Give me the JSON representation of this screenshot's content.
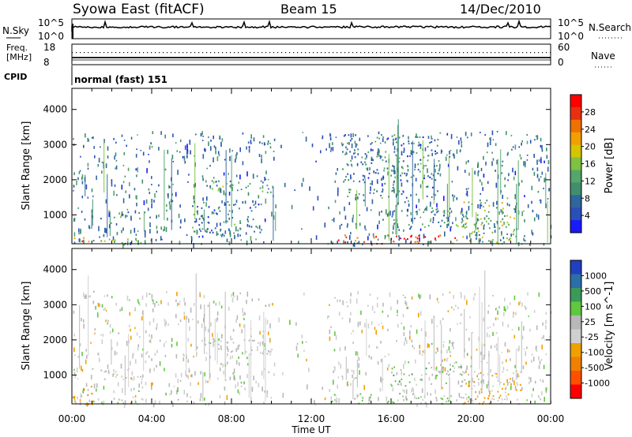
{
  "header": {
    "station": "Syowa East (fitACF)",
    "beam": "Beam 15",
    "date": "14/Dec/2010"
  },
  "nsky_panel": {
    "left_label": "N.Sky",
    "right_label": "N.Search",
    "left_ticks": [
      "10^5",
      "10^0"
    ],
    "right_ticks": [
      "10^5",
      "10^0"
    ]
  },
  "freq_panel": {
    "left_label_1": "Freq.",
    "left_label_2": "[MHz]",
    "right_label": "Nave",
    "left_ticks": [
      "18",
      "8"
    ],
    "right_ticks": [
      "60",
      "0"
    ],
    "cpid_label": "CPID",
    "cpid_text": "normal (fast) 151"
  },
  "colors": {
    "power_scale": [
      "#1a1aff",
      "#2a4fb8",
      "#2f66a0",
      "#3f8f6f",
      "#56a56a",
      "#7dc241",
      "#d6c400",
      "#f0a000",
      "#f07000",
      "#e83010",
      "#ff0000"
    ],
    "velocity_scale": [
      "#ff0000",
      "#ff5000",
      "#f08000",
      "#f0a000",
      "#cfcfcf",
      "#b8b8b8",
      "#60c840",
      "#3a9a5a",
      "#2a6fa8",
      "#2040c0"
    ],
    "axis": "#000000",
    "background": "#ffffff"
  },
  "chart_data": [
    {
      "type": "heatmap",
      "title": "",
      "xlabel": "Time UT",
      "ylabel": "Slant Range [km]",
      "xlim": [
        "00:00",
        "24:00"
      ],
      "ylim": [
        180,
        4600
      ],
      "x_ticks": [
        "00:00",
        "04:00",
        "08:00",
        "12:00",
        "16:00",
        "20:00",
        "00:00"
      ],
      "y_ticks": [
        1000,
        2000,
        3000,
        4000
      ],
      "colorbar": {
        "label": "Power [dB]",
        "ticks": [
          "4",
          "8",
          "12",
          "16",
          "20",
          "24",
          "28"
        ],
        "range": [
          0,
          30
        ]
      },
      "regions": [
        {
          "t_start": 0.0,
          "t_end": 0.9,
          "r_start": 180,
          "r_end": 400,
          "value": 24
        },
        {
          "t_start": 0.9,
          "t_end": 3.9,
          "r_start": 900,
          "r_end": 1150,
          "value": 10
        },
        {
          "t_start": 0.5,
          "t_end": 3.5,
          "r_start": 180,
          "r_end": 350,
          "value": 14
        },
        {
          "t_start": 6.7,
          "t_end": 10.0,
          "r_start": 1650,
          "r_end": 2000,
          "value": 11
        },
        {
          "t_start": 6.0,
          "t_end": 9.5,
          "r_start": 400,
          "r_end": 1400,
          "value": 8
        },
        {
          "t_start": 13.2,
          "t_end": 19.5,
          "r_start": 200,
          "r_end": 450,
          "value": 26
        },
        {
          "t_start": 16.0,
          "t_end": 20.0,
          "r_start": 600,
          "r_end": 1200,
          "value": 10
        },
        {
          "t_start": 19.5,
          "t_end": 22.3,
          "r_start": 200,
          "r_end": 1500,
          "value": 14
        },
        {
          "t_start": 13.5,
          "t_end": 18.5,
          "r_start": 1500,
          "r_end": 3300,
          "value": 8
        }
      ]
    },
    {
      "type": "heatmap",
      "title": "",
      "xlabel": "Time UT",
      "ylabel": "Slant Range [km]",
      "xlim": [
        "00:00",
        "24:00"
      ],
      "ylim": [
        180,
        4600
      ],
      "x_ticks": [
        "00:00",
        "04:00",
        "08:00",
        "12:00",
        "16:00",
        "20:00",
        "00:00"
      ],
      "y_ticks": [
        1000,
        2000,
        3000,
        4000
      ],
      "colorbar": {
        "label": "Velocity [m s^-1]",
        "ticks": [
          "1000",
          "500",
          "100",
          "25",
          "-25",
          "-100",
          "-500",
          "-1000"
        ],
        "range": [
          -1200,
          1200
        ]
      },
      "regions": [
        {
          "t_start": 0.0,
          "t_end": 1.0,
          "r_start": 180,
          "r_end": 700,
          "value": -450
        },
        {
          "t_start": 1.0,
          "t_end": 3.5,
          "r_start": 900,
          "r_end": 1200,
          "value": 0
        },
        {
          "t_start": 0.5,
          "t_end": 3.8,
          "r_start": 180,
          "r_end": 350,
          "value": 150
        },
        {
          "t_start": 6.8,
          "t_end": 10.0,
          "r_start": 1600,
          "r_end": 2100,
          "value": 0
        },
        {
          "t_start": 13.0,
          "t_end": 20.0,
          "r_start": 200,
          "r_end": 500,
          "value": 200
        },
        {
          "t_start": 16.0,
          "t_end": 20.0,
          "r_start": 700,
          "r_end": 1400,
          "value": 300
        },
        {
          "t_start": 19.5,
          "t_end": 22.5,
          "r_start": 200,
          "r_end": 1200,
          "value": -250
        }
      ]
    }
  ],
  "x_axis_label": "Time UT"
}
